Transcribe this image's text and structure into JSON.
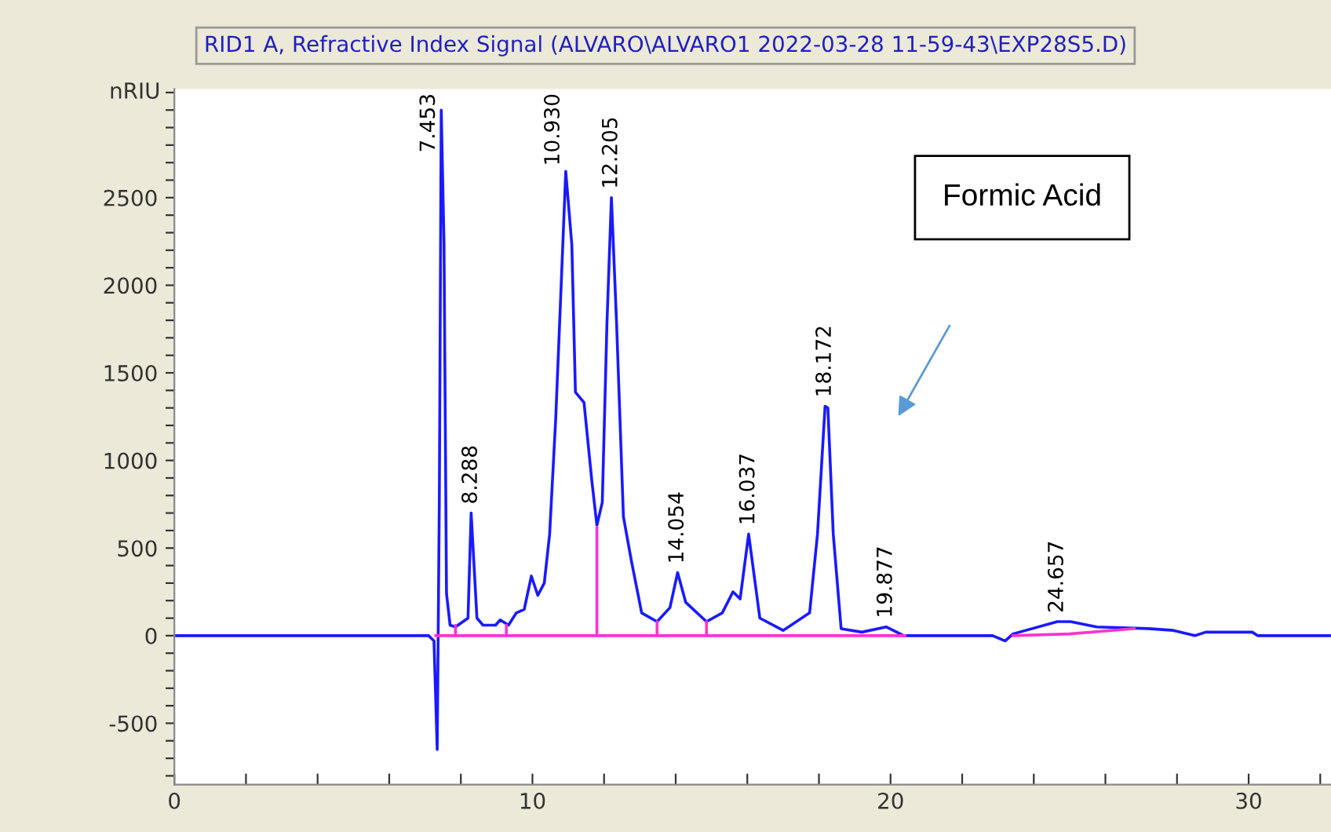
{
  "chart_data": {
    "type": "line",
    "title": "RID1 A, Refractive Index Signal (ALVARO\\ALVARO1 2022-03-28 11-59-43\\EXP28S5.D)",
    "ylabel": "nRIU",
    "xlim": [
      0,
      32.3
    ],
    "ylim": [
      -850,
      3120
    ],
    "xticks": [
      0,
      {
        "value": 2,
        "label": null
      },
      {
        "value": 4,
        "label": null
      },
      {
        "value": 6,
        "label": null
      },
      {
        "value": 8,
        "label": null
      },
      10,
      {
        "value": 12,
        "label": null
      },
      {
        "value": 14,
        "label": null
      },
      {
        "value": 16,
        "label": null
      },
      {
        "value": 18,
        "label": null
      },
      20,
      {
        "value": 22,
        "label": null
      },
      {
        "value": 24,
        "label": null
      },
      {
        "value": 26,
        "label": null
      },
      {
        "value": 28,
        "label": null
      },
      30,
      {
        "value": 32,
        "label": null
      }
    ],
    "yticks": [
      {
        "value": -800,
        "label": null
      },
      {
        "value": -700,
        "label": null
      },
      {
        "value": -600,
        "label": null
      },
      -500,
      {
        "value": -400,
        "label": null
      },
      {
        "value": -300,
        "label": null
      },
      {
        "value": -200,
        "label": null
      },
      {
        "value": -100,
        "label": null
      },
      0,
      {
        "value": 100,
        "label": null
      },
      {
        "value": 200,
        "label": null
      },
      {
        "value": 300,
        "label": null
      },
      {
        "value": 400,
        "label": null
      },
      500,
      {
        "value": 600,
        "label": null
      },
      {
        "value": 700,
        "label": null
      },
      {
        "value": 800,
        "label": null
      },
      {
        "value": 900,
        "label": null
      },
      1000,
      {
        "value": 1100,
        "label": null
      },
      {
        "value": 1200,
        "label": null
      },
      {
        "value": 1300,
        "label": null
      },
      {
        "value": 1400,
        "label": null
      },
      1500,
      {
        "value": 1600,
        "label": null
      },
      {
        "value": 1700,
        "label": null
      },
      {
        "value": 1800,
        "label": null
      },
      {
        "value": 1900,
        "label": null
      },
      2000,
      {
        "value": 2100,
        "label": null
      },
      {
        "value": 2200,
        "label": null
      },
      {
        "value": 2300,
        "label": null
      },
      {
        "value": 2400,
        "label": null
      },
      2500,
      {
        "value": 2600,
        "label": null
      },
      {
        "value": 2700,
        "label": null
      },
      {
        "value": 2800,
        "label": null
      },
      {
        "value": 2900,
        "label": null
      },
      {
        "value": 3000,
        "label": null
      },
      {
        "value": 3100,
        "label": null
      }
    ],
    "grid": false,
    "marker": "none",
    "line_style": "solid",
    "series": [
      {
        "color": "#1a1aff",
        "x": [
          0,
          7.1,
          7.25,
          7.34,
          7.4,
          7.453,
          7.53,
          7.6,
          7.7,
          7.85,
          8.2,
          8.288,
          8.45,
          8.62,
          8.97,
          9.1,
          9.33,
          9.55,
          9.77,
          9.97,
          10.15,
          10.33,
          10.48,
          10.65,
          10.8,
          10.93,
          11.1,
          11.2,
          11.44,
          11.66,
          11.8,
          11.95,
          12.08,
          12.205,
          12.35,
          12.54,
          12.76,
          13.05,
          13.48,
          13.84,
          14.054,
          14.28,
          14.86,
          15.3,
          15.6,
          15.8,
          16.037,
          16.35,
          17.0,
          17.74,
          17.96,
          18.172,
          18.25,
          18.4,
          18.62,
          19.2,
          19.877,
          20.37,
          22.85,
          23.2,
          23.42,
          24.657,
          25.03,
          25.76,
          27.2,
          27.9,
          28.5,
          28.8,
          30.1,
          30.25,
          32.3
        ],
        "values": [
          0,
          0,
          -30,
          -650,
          790,
          3000,
          2240,
          240,
          60,
          50,
          100,
          700,
          100,
          60,
          60,
          90,
          60,
          130,
          150,
          340,
          230,
          300,
          580,
          1240,
          1990,
          2650,
          2230,
          1390,
          1330,
          880,
          630,
          760,
          1780,
          2500,
          1780,
          680,
          430,
          130,
          80,
          160,
          360,
          190,
          80,
          130,
          250,
          210,
          580,
          100,
          30,
          130,
          580,
          1310,
          1300,
          580,
          40,
          20,
          50,
          0,
          0,
          -30,
          10,
          80,
          80,
          50,
          40,
          30,
          0,
          20,
          20,
          0,
          0
        ]
      },
      {
        "color": "#ff33cc",
        "x": [
          7.3,
          7.85,
          7.85,
          7.85,
          9.27,
          9.27,
          9.27,
          11.8,
          11.8,
          11.8,
          13.48,
          13.48,
          13.48,
          14.86,
          14.86,
          14.86,
          20.4,
          22.0,
          23.42,
          25.0,
          26.8
        ],
        "values": [
          0,
          0,
          60,
          0,
          0,
          60,
          0,
          0,
          620,
          0,
          0,
          80,
          0,
          0,
          80,
          0,
          0,
          null,
          0,
          10,
          40
        ]
      }
    ],
    "annotations": [
      {
        "text": "7.453",
        "x": 7.453,
        "y": 3000
      },
      {
        "text": "8.288",
        "x": 8.288,
        "y": 700
      },
      {
        "text": "10.930",
        "x": 10.93,
        "y": 2650
      },
      {
        "text": "12.205",
        "x": 12.205,
        "y": 2500
      },
      {
        "text": "14.054",
        "x": 14.054,
        "y": 360
      },
      {
        "text": "16.037",
        "x": 16.037,
        "y": 580
      },
      {
        "text": "18.172",
        "x": 18.172,
        "y": 1310
      },
      {
        "text": "19.877",
        "x": 19.877,
        "y": 50
      },
      {
        "text": "24.657",
        "x": 24.657,
        "y": 80
      },
      "Formic Acid"
    ]
  }
}
